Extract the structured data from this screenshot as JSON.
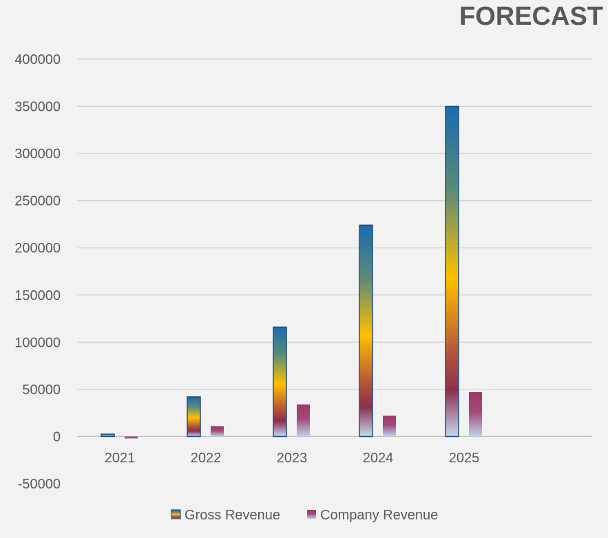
{
  "chart_data": {
    "type": "bar",
    "title": "FORECAST",
    "xlabel": "",
    "ylabel": "",
    "categories": [
      "2021",
      "2022",
      "2023",
      "2024",
      "2025"
    ],
    "series": [
      {
        "name": "Gross Revenue",
        "values": [
          2500,
          42000,
          116000,
          224000,
          350000
        ],
        "color": "#1f6fae"
      },
      {
        "name": "Company Revenue",
        "values": [
          -2500,
          11000,
          34000,
          22000,
          47000
        ],
        "color": "#a33b6a"
      }
    ],
    "ylim": [
      -50000,
      400000
    ],
    "yticks": [
      400000,
      350000,
      300000,
      250000,
      200000,
      150000,
      100000,
      50000,
      0,
      -50000
    ],
    "grid": true,
    "legend_position": "bottom"
  }
}
